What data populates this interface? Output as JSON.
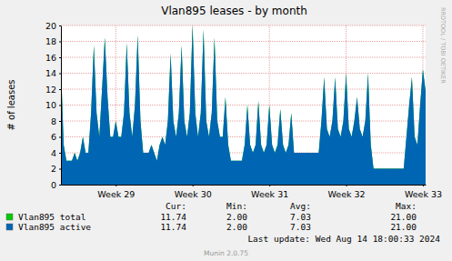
{
  "chart_data": {
    "type": "area",
    "title": "Vlan895 leases - by month",
    "y_label": "# of leases",
    "categories": [
      null,
      null,
      null,
      null,
      null,
      null,
      null,
      null,
      null,
      null,
      null,
      null,
      null,
      null,
      null,
      null,
      null,
      null,
      null,
      null,
      "Week 29",
      null,
      null,
      null,
      null,
      null,
      null,
      null,
      null,
      null,
      null,
      null,
      null,
      null,
      null,
      null,
      null,
      null,
      null,
      null,
      null,
      null,
      null,
      null,
      null,
      null,
      null,
      null,
      "Week 30",
      null,
      null,
      null,
      null,
      null,
      null,
      null,
      null,
      null,
      null,
      null,
      null,
      null,
      null,
      null,
      null,
      null,
      null,
      null,
      null,
      null,
      null,
      null,
      null,
      null,
      null,
      null,
      "Week 31",
      null,
      null,
      null,
      null,
      null,
      null,
      null,
      null,
      null,
      null,
      null,
      null,
      null,
      null,
      null,
      null,
      null,
      null,
      null,
      null,
      null,
      null,
      null,
      null,
      null,
      null,
      null,
      "Week 32",
      null,
      null,
      null,
      null,
      null,
      null,
      null,
      null,
      null,
      null,
      null,
      null,
      null,
      null,
      null,
      null,
      null,
      null,
      null,
      null,
      null,
      null,
      null,
      null,
      null,
      null,
      null,
      "Week 33",
      null
    ],
    "series": [
      {
        "name": "Vlan895 total",
        "color": "#00cc00",
        "stats": [
          "11.74",
          "2.00",
          "7.03",
          "21.00"
        ],
        "values": [
          15,
          5,
          3,
          3,
          3,
          4,
          3,
          4,
          6,
          4,
          4,
          9,
          17.5,
          9,
          6,
          12,
          18.5,
          11,
          6,
          6,
          8,
          6,
          6,
          9,
          17.8,
          9,
          6,
          10,
          18.8,
          8,
          4,
          4,
          4,
          5,
          4,
          3,
          5,
          6,
          5,
          8,
          16.5,
          8,
          6,
          9,
          17.5,
          8,
          6,
          9,
          20,
          9,
          6,
          9,
          19.5,
          8,
          6,
          9,
          18.5,
          8,
          6,
          6,
          11,
          5,
          3,
          3,
          3,
          3,
          3,
          5,
          10,
          5,
          4,
          5,
          10.5,
          5,
          4,
          5,
          10,
          5,
          4,
          5,
          9.5,
          5,
          4,
          5,
          9,
          4,
          4,
          4,
          4,
          4,
          4,
          4,
          4,
          4,
          4,
          8,
          13.5,
          7,
          6,
          8,
          13.5,
          7,
          6,
          8,
          14,
          7,
          6,
          8,
          11,
          7,
          6,
          8,
          14,
          5,
          2,
          2,
          2,
          2,
          2,
          2,
          2,
          2,
          2,
          2,
          2,
          2,
          6,
          10,
          13.5,
          6,
          5,
          10,
          14.5,
          11.74
        ]
      },
      {
        "name": "Vlan895 active",
        "color": "#0066b3",
        "stats": [
          "11.74",
          "2.00",
          "7.03",
          "21.00"
        ],
        "values": [
          15,
          5,
          3,
          3,
          3,
          4,
          3,
          4,
          6,
          4,
          4,
          9,
          17.5,
          9,
          6,
          12,
          18.5,
          11,
          6,
          6,
          8,
          6,
          6,
          9,
          17.8,
          9,
          6,
          10,
          18.8,
          8,
          4,
          4,
          4,
          5,
          4,
          3,
          5,
          6,
          5,
          8,
          16.5,
          8,
          6,
          9,
          17.5,
          8,
          6,
          9,
          20,
          9,
          6,
          9,
          19.5,
          8,
          6,
          9,
          18.5,
          8,
          6,
          6,
          11,
          5,
          3,
          3,
          3,
          3,
          3,
          5,
          10,
          5,
          4,
          5,
          10.5,
          5,
          4,
          5,
          10,
          5,
          4,
          5,
          9.5,
          5,
          4,
          5,
          9,
          4,
          4,
          4,
          4,
          4,
          4,
          4,
          4,
          4,
          4,
          8,
          13.5,
          7,
          6,
          8,
          13.5,
          7,
          6,
          8,
          14,
          7,
          6,
          8,
          11,
          7,
          6,
          8,
          14,
          5,
          2,
          2,
          2,
          2,
          2,
          2,
          2,
          2,
          2,
          2,
          2,
          2,
          6,
          10,
          13.5,
          6,
          5,
          10,
          14.5,
          11.74
        ]
      }
    ],
    "stats_headers": [
      "Cur:",
      "Min:",
      "Avg:",
      "Max:"
    ],
    "annotations": [
      "Last update: Wed Aug 14 18:00:33 2024",
      "Munin 2.0.75",
      "RRDTOOL / TOBI OETIKER"
    ],
    "ylim": [
      0,
      20
    ],
    "yticks": [
      0,
      2,
      4,
      6,
      8,
      10,
      12,
      14,
      16,
      18,
      20
    ],
    "grid": true,
    "legend": "bottom"
  }
}
